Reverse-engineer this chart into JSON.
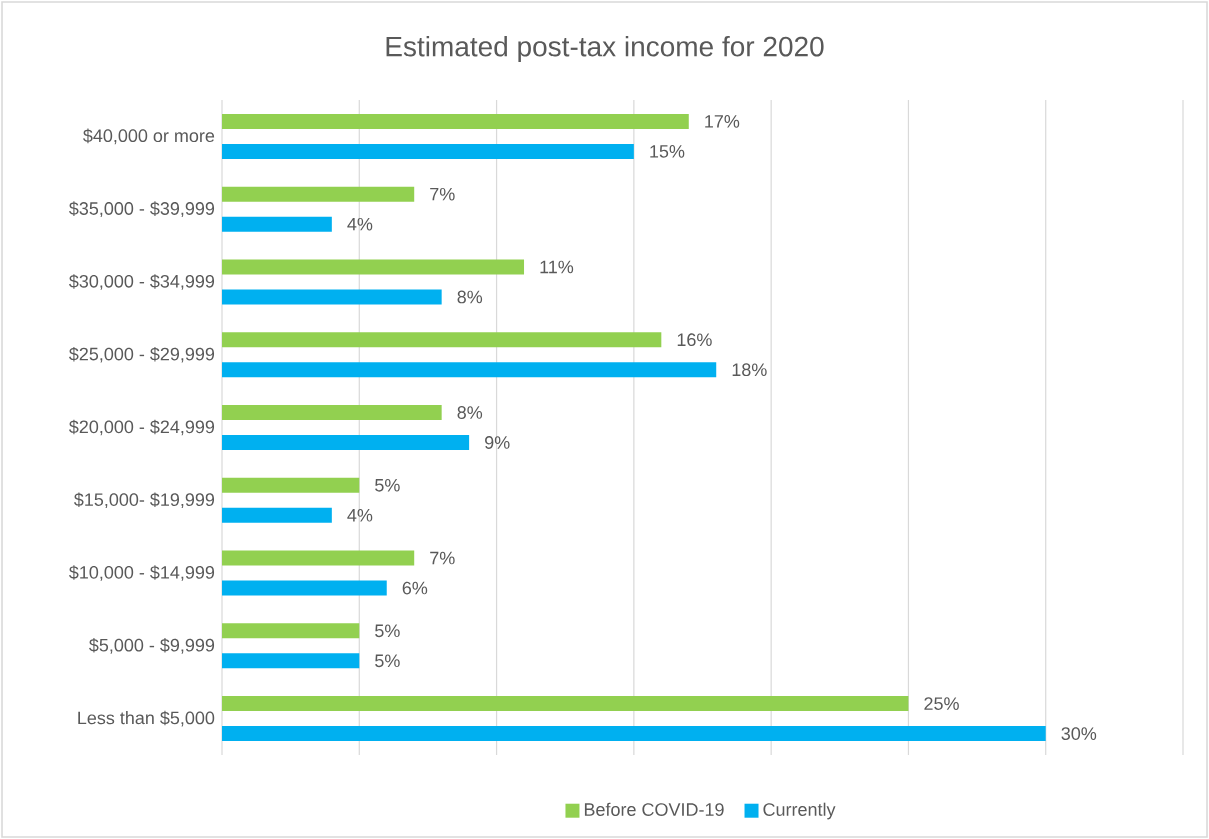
{
  "chart_data": {
    "type": "bar",
    "orientation": "horizontal",
    "title": "Estimated post-tax income for 2020",
    "categories": [
      "$40,000 or more",
      "$35,000 - $39,999",
      "$30,000 - $34,999",
      "$25,000 - $29,999",
      "$20,000 - $24,999",
      "$15,000- $19,999",
      "$10,000 - $14,999",
      "$5,000 - $9,999",
      "Less than $5,000"
    ],
    "series": [
      {
        "name": "Before COVID-19",
        "color": "#92d050",
        "values": [
          17,
          7,
          11,
          16,
          8,
          5,
          7,
          5,
          25
        ],
        "value_labels": [
          "17%",
          "7%",
          "11%",
          "16%",
          "8%",
          "5%",
          "7%",
          "5%",
          "25%"
        ]
      },
      {
        "name": "Currently",
        "color": "#00b0f0",
        "values": [
          15,
          4,
          8,
          18,
          9,
          4,
          6,
          5,
          30
        ],
        "value_labels": [
          "15%",
          "4%",
          "8%",
          "18%",
          "9%",
          "4%",
          "6%",
          "5%",
          "30%"
        ]
      }
    ],
    "xlim": [
      0,
      35
    ],
    "xticks": [
      {
        "value": 0,
        "label": null
      },
      {
        "value": 5,
        "label": null
      },
      {
        "value": 10,
        "label": null
      },
      {
        "value": 15,
        "label": null
      },
      {
        "value": 20,
        "label": null
      },
      {
        "value": 25,
        "label": null
      },
      {
        "value": 30,
        "label": null
      },
      {
        "value": 35,
        "label": null
      }
    ],
    "tick_labels": "y",
    "grid": "x",
    "legend": "bottom"
  }
}
